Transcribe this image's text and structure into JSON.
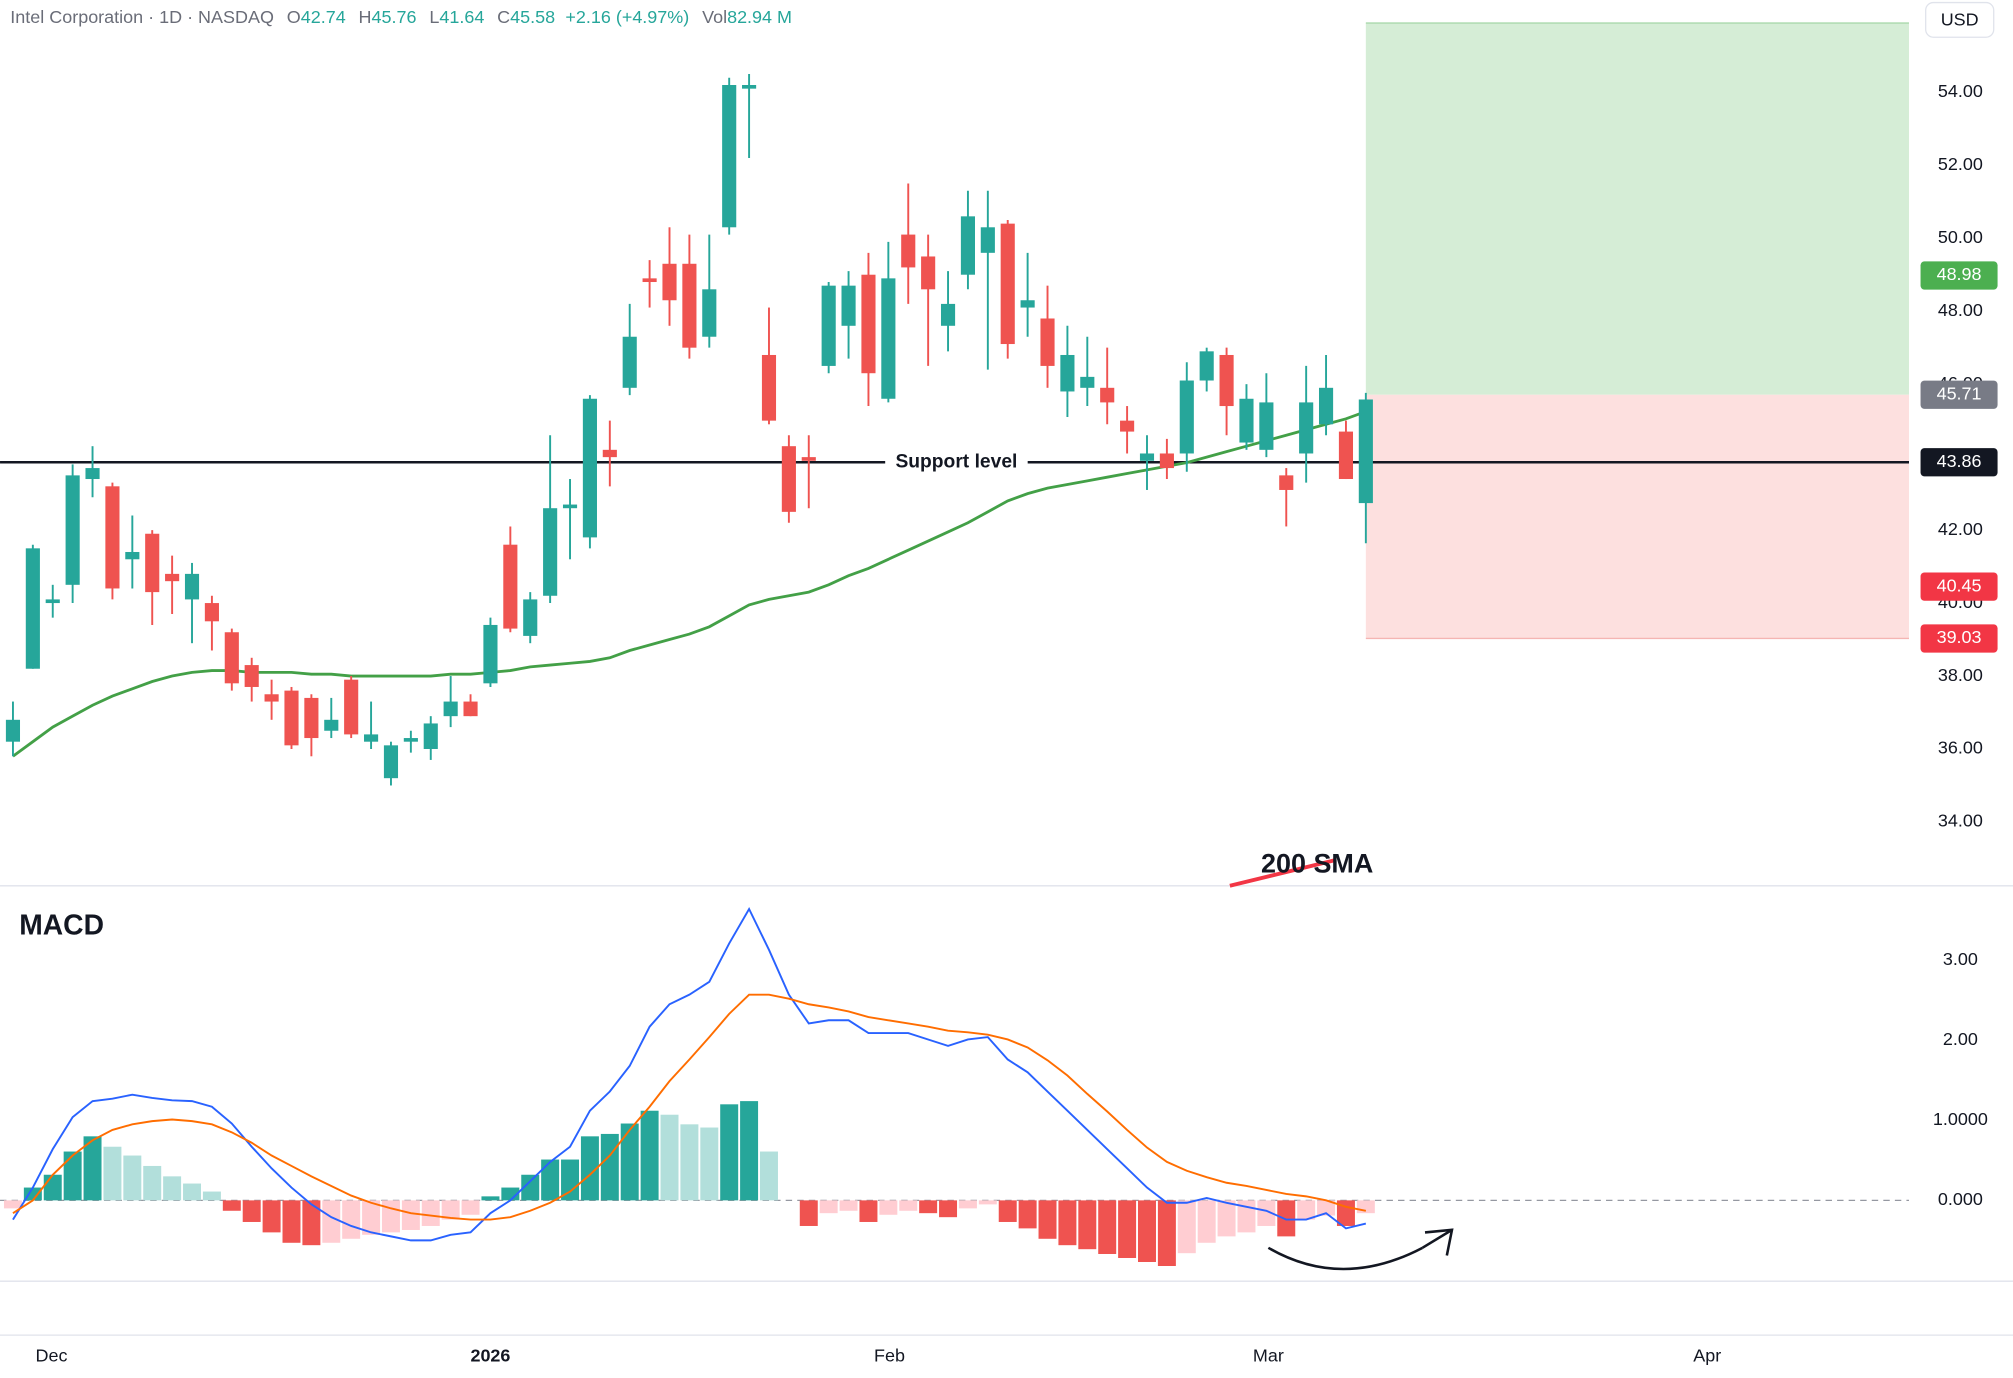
{
  "header": {
    "title": "Intel Corporation · 1D · NASDAQ",
    "fields": [
      {
        "label": "O",
        "value": 42.74
      },
      {
        "label": "H",
        "value": 45.76
      },
      {
        "label": "L",
        "value": 41.64
      },
      {
        "label": "C",
        "value": 45.58
      }
    ],
    "change": "+2.16 (+4.97%)",
    "volume_label": "Vol",
    "volume": "82.94 M"
  },
  "chart_data": [
    {
      "type": "candlestick",
      "currency": "USD",
      "up_color": "#26a69a",
      "down_color": "#ef5350",
      "candles": {
        "open": [
          36.2,
          38.2,
          40.0,
          40.5,
          43.4,
          43.2,
          41.2,
          41.9,
          40.8,
          40.1,
          40.0,
          39.2,
          38.3,
          37.5,
          37.6,
          37.4,
          36.5,
          37.9,
          36.2,
          35.2,
          36.2,
          36.0,
          36.9,
          37.3,
          37.8,
          41.6,
          39.1,
          40.2,
          42.6,
          41.8,
          44.2,
          45.9,
          48.9,
          49.3,
          49.3,
          47.3,
          50.3,
          54.1,
          46.8,
          44.3,
          44.0,
          46.5,
          47.6,
          49.0,
          45.6,
          50.1,
          49.5,
          47.6,
          49.0,
          49.6,
          50.4,
          48.1,
          47.8,
          45.8,
          45.9,
          45.9,
          45.0,
          43.9,
          44.1,
          44.1,
          46.1,
          46.8,
          44.4,
          44.2,
          43.5,
          44.1,
          44.9,
          44.7,
          42.74
        ],
        "high": [
          37.3,
          41.6,
          40.5,
          43.8,
          44.3,
          43.3,
          42.4,
          42.0,
          41.3,
          41.1,
          40.2,
          39.3,
          38.5,
          37.9,
          37.7,
          37.5,
          37.4,
          38.0,
          37.3,
          36.2,
          36.5,
          36.9,
          38.0,
          37.5,
          39.6,
          42.1,
          40.3,
          44.6,
          43.4,
          45.7,
          45.0,
          48.2,
          49.4,
          50.3,
          50.1,
          50.1,
          54.4,
          54.5,
          48.1,
          44.6,
          44.6,
          48.8,
          49.1,
          49.6,
          49.9,
          51.5,
          50.1,
          49.1,
          51.3,
          51.3,
          50.5,
          49.6,
          48.7,
          47.6,
          47.3,
          47.0,
          45.4,
          44.6,
          44.5,
          46.6,
          47.0,
          47.0,
          46.0,
          46.3,
          43.7,
          46.5,
          46.8,
          45.0,
          45.76
        ],
        "low": [
          35.8,
          38.2,
          39.6,
          40.0,
          42.9,
          40.1,
          40.4,
          39.4,
          39.7,
          38.9,
          38.7,
          37.6,
          37.3,
          36.8,
          36.0,
          35.8,
          36.3,
          36.3,
          36.0,
          35.0,
          35.9,
          35.7,
          36.6,
          36.9,
          37.7,
          39.2,
          38.9,
          40.0,
          41.2,
          41.5,
          43.2,
          45.7,
          48.1,
          47.6,
          46.7,
          47.0,
          50.1,
          52.2,
          44.9,
          42.2,
          42.6,
          46.3,
          46.7,
          45.4,
          45.5,
          48.2,
          46.5,
          46.9,
          48.6,
          46.4,
          46.7,
          47.3,
          45.9,
          45.1,
          45.4,
          44.9,
          44.1,
          43.1,
          43.4,
          43.6,
          45.8,
          44.6,
          44.2,
          44.0,
          42.1,
          43.3,
          44.6,
          43.4,
          41.64
        ],
        "close": [
          36.8,
          41.5,
          40.1,
          43.5,
          43.7,
          40.4,
          41.4,
          40.3,
          40.6,
          40.8,
          39.5,
          37.8,
          37.7,
          37.3,
          36.1,
          36.3,
          36.8,
          36.4,
          36.4,
          36.1,
          36.3,
          36.7,
          37.3,
          36.9,
          39.4,
          39.3,
          40.1,
          42.6,
          42.7,
          45.6,
          44.0,
          47.3,
          48.8,
          48.3,
          47.0,
          48.6,
          54.2,
          54.2,
          45.0,
          42.5,
          43.9,
          48.7,
          48.7,
          46.3,
          48.9,
          49.2,
          48.6,
          48.2,
          50.6,
          50.3,
          47.1,
          48.3,
          46.5,
          46.8,
          46.2,
          45.5,
          44.7,
          44.1,
          43.7,
          46.1,
          46.9,
          45.4,
          45.6,
          45.5,
          43.1,
          45.5,
          45.9,
          43.4,
          45.58
        ]
      },
      "sma": {
        "color": "#43a047",
        "values": [
          35.8,
          36.2,
          36.6,
          36.9,
          37.2,
          37.45,
          37.65,
          37.85,
          38.0,
          38.1,
          38.15,
          38.15,
          38.1,
          38.1,
          38.1,
          38.05,
          38.05,
          38.0,
          38.0,
          38.0,
          38.0,
          38.0,
          38.05,
          38.05,
          38.1,
          38.15,
          38.25,
          38.3,
          38.35,
          38.4,
          38.5,
          38.7,
          38.85,
          39.0,
          39.15,
          39.35,
          39.65,
          39.95,
          40.1,
          40.2,
          40.3,
          40.5,
          40.75,
          40.95,
          41.2,
          41.45,
          41.7,
          41.95,
          42.2,
          42.5,
          42.8,
          43.0,
          43.15,
          43.25,
          43.35,
          43.45,
          43.55,
          43.65,
          43.75,
          43.85,
          44.0,
          44.15,
          44.3,
          44.45,
          44.6,
          44.75,
          44.9,
          45.05,
          45.25
        ]
      },
      "support": {
        "value": 43.86,
        "label": "Support level"
      },
      "position": {
        "target": 55.9,
        "entry": 45.71,
        "stop": 39.03
      },
      "annotation": "200 SMA",
      "price_labels": [
        {
          "value": 48.98,
          "color": "#4caf50"
        },
        {
          "value": 45.71,
          "color": "#787b86"
        },
        {
          "value": 43.86,
          "color": "#131722"
        },
        {
          "value": 40.45,
          "color": "#f23645"
        },
        {
          "value": 39.03,
          "color": "#f23645"
        }
      ],
      "xlim": [
        -0.65,
        95.3
      ],
      "xticks": [
        {
          "value": 1.94,
          "label": "Dec"
        },
        {
          "value": 24,
          "label": "2026"
        },
        {
          "value": 44.06,
          "label": "Feb"
        },
        {
          "value": 63.1,
          "label": "Mar"
        },
        {
          "value": 85.16,
          "label": "Apr"
        }
      ],
      "ylim": [
        32.25,
        56.53
      ],
      "yticks": [
        {
          "value": 34,
          "label": "34.00"
        },
        {
          "value": 36,
          "label": "36.00"
        },
        {
          "value": 38,
          "label": "38.00"
        },
        {
          "value": 40,
          "label": "40.00"
        },
        {
          "value": 42,
          "label": "42.00"
        },
        {
          "value": 44,
          "label": "44.00"
        },
        {
          "value": 46,
          "label": "46.00"
        },
        {
          "value": 48,
          "label": "48.00"
        },
        {
          "value": 50,
          "label": "50.00"
        },
        {
          "value": 52,
          "label": "52.00"
        },
        {
          "value": 54,
          "label": "54.00"
        }
      ]
    },
    {
      "type": "macd",
      "title": "MACD",
      "macd": {
        "color": "#2962ff",
        "values": [
          -0.24,
          0.16,
          0.64,
          1.04,
          1.24,
          1.27,
          1.32,
          1.28,
          1.25,
          1.24,
          1.17,
          0.96,
          0.67,
          0.4,
          0.16,
          -0.05,
          -0.21,
          -0.32,
          -0.4,
          -0.45,
          -0.5,
          -0.5,
          -0.43,
          -0.4,
          -0.16,
          0,
          0.24,
          0.48,
          0.67,
          1.12,
          1.36,
          1.68,
          2.17,
          2.45,
          2.57,
          2.73,
          3.21,
          3.64,
          3.13,
          2.57,
          2.21,
          2.25,
          2.25,
          2.09,
          2.09,
          2.09,
          2.01,
          1.93,
          2.01,
          2.04,
          1.76,
          1.6,
          1.36,
          1.12,
          0.88,
          0.64,
          0.4,
          0.16,
          -0.03,
          -0.03,
          0.03,
          -0.03,
          -0.08,
          -0.13,
          -0.24,
          -0.24,
          -0.16,
          -0.35,
          -0.29
        ]
      },
      "signal": {
        "color": "#ff6d00",
        "values": [
          -0.16,
          0,
          0.32,
          0.56,
          0.75,
          0.88,
          0.95,
          0.99,
          1.01,
          0.99,
          0.95,
          0.85,
          0.72,
          0.56,
          0.43,
          0.3,
          0.18,
          0.06,
          -0.03,
          -0.1,
          -0.16,
          -0.19,
          -0.22,
          -0.24,
          -0.24,
          -0.21,
          -0.13,
          -0.03,
          0.11,
          0.32,
          0.56,
          0.88,
          1.17,
          1.49,
          1.76,
          2.04,
          2.33,
          2.57,
          2.57,
          2.52,
          2.45,
          2.41,
          2.36,
          2.29,
          2.25,
          2.21,
          2.17,
          2.12,
          2.1,
          2.07,
          2.01,
          1.91,
          1.75,
          1.56,
          1.33,
          1.11,
          0.88,
          0.66,
          0.48,
          0.37,
          0.29,
          0.22,
          0.18,
          0.13,
          0.08,
          0.05,
          0,
          -0.08,
          -0.13
        ]
      },
      "histogram": {
        "values": [
          -0.1,
          0.16,
          0.32,
          0.61,
          0.8,
          0.67,
          0.56,
          0.43,
          0.3,
          0.21,
          0.11,
          -0.13,
          -0.27,
          -0.4,
          -0.53,
          -0.56,
          -0.53,
          -0.48,
          -0.43,
          -0.4,
          -0.37,
          -0.32,
          -0.24,
          -0.18,
          0.05,
          0.16,
          0.32,
          0.51,
          0.51,
          0.8,
          0.83,
          0.96,
          1.12,
          1.07,
          0.95,
          0.91,
          1.2,
          1.24,
          0.61,
          0,
          -0.32,
          -0.16,
          -0.13,
          -0.27,
          -0.18,
          -0.13,
          -0.16,
          -0.21,
          -0.1,
          -0.05,
          -0.27,
          -0.35,
          -0.48,
          -0.56,
          -0.61,
          -0.67,
          -0.72,
          -0.77,
          -0.82,
          -0.66,
          -0.53,
          -0.45,
          -0.4,
          -0.32,
          -0.45,
          -0.24,
          -0.19,
          -0.32,
          -0.16
        ],
        "colors": [
          "#ffcdd2",
          "#26a69a",
          "#26a69a",
          "#26a69a",
          "#26a69a",
          "#b2dfdb",
          "#b2dfdb",
          "#b2dfdb",
          "#b2dfdb",
          "#b2dfdb",
          "#b2dfdb",
          "#ef5350",
          "#ef5350",
          "#ef5350",
          "#ef5350",
          "#ef5350",
          "#ffcdd2",
          "#ffcdd2",
          "#ffcdd2",
          "#ffcdd2",
          "#ffcdd2",
          "#ffcdd2",
          "#ffcdd2",
          "#ffcdd2",
          "#26a69a",
          "#26a69a",
          "#26a69a",
          "#26a69a",
          "#26a69a",
          "#26a69a",
          "#26a69a",
          "#26a69a",
          "#26a69a",
          "#b2dfdb",
          "#b2dfdb",
          "#b2dfdb",
          "#26a69a",
          "#26a69a",
          "#b2dfdb",
          "#ffcdd2",
          "#ef5350",
          "#ffcdd2",
          "#ffcdd2",
          "#ef5350",
          "#ffcdd2",
          "#ffcdd2",
          "#ef5350",
          "#ef5350",
          "#ffcdd2",
          "#ffcdd2",
          "#ef5350",
          "#ef5350",
          "#ef5350",
          "#ef5350",
          "#ef5350",
          "#ef5350",
          "#ef5350",
          "#ef5350",
          "#ef5350",
          "#ffcdd2",
          "#ffcdd2",
          "#ffcdd2",
          "#ffcdd2",
          "#ffcdd2",
          "#ef5350",
          "#ffcdd2",
          "#ffcdd2",
          "#ef5350",
          "#ffcdd2"
        ]
      },
      "ylim": [
        -1.01,
        3.93
      ],
      "yticks": [
        {
          "value": 3,
          "label": "3.00"
        },
        {
          "value": 2,
          "label": "2.00"
        },
        {
          "value": 1,
          "label": "1.0000"
        },
        {
          "value": 0,
          "label": "0.000"
        }
      ]
    }
  ]
}
